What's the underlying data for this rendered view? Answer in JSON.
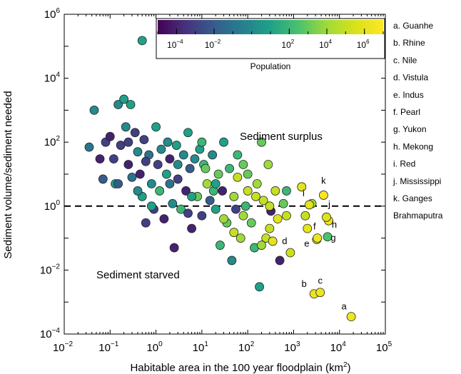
{
  "chart_data": {
    "type": "scatter",
    "xlabel": "Habitable area in the 100 year floodplain (km",
    "xlabel_sup": "2",
    "xlabel_end": ")",
    "ylabel": "Sediment volume/sediment needed",
    "xscale": "log",
    "yscale": "log",
    "xlim": [
      0.01,
      100000
    ],
    "ylim": [
      0.0001,
      1000000
    ],
    "x_ticks": [
      {
        "base": "10",
        "exp": "−2"
      },
      {
        "base": "10",
        "exp": "−1"
      },
      {
        "base": "10",
        "exp": "0"
      },
      {
        "base": "10",
        "exp": "1"
      },
      {
        "base": "10",
        "exp": "2"
      },
      {
        "base": "10",
        "exp": "3"
      },
      {
        "base": "10",
        "exp": "4"
      },
      {
        "base": "10",
        "exp": "5"
      }
    ],
    "y_ticks": [
      {
        "base": "10",
        "exp": "−4"
      },
      {
        "base": "10",
        "exp": "−2"
      },
      {
        "base": "10",
        "exp": "0"
      },
      {
        "base": "10",
        "exp": "2"
      },
      {
        "base": "10",
        "exp": "4"
      },
      {
        "base": "10",
        "exp": "6"
      }
    ],
    "threshold_line": 1,
    "region_labels": {
      "surplus": "Sediment surplus",
      "starved": "Sediment starved"
    },
    "colorbar": {
      "label": "Population",
      "colormap": "viridis",
      "log_range": [
        -5,
        7
      ],
      "ticks": [
        {
          "base": "10",
          "exp": "−4"
        },
        {
          "base": "10",
          "exp": "−2"
        },
        {
          "base": "10",
          "exp": "2"
        },
        {
          "base": "10",
          "exp": "4"
        },
        {
          "base": "10",
          "exp": "6"
        }
      ]
    },
    "river_legend": [
      "a. Guanhe",
      "b. Rhine",
      "c. Nile",
      "d. Vistula",
      "e. Indus",
      "f. Pearl",
      "g. Yukon",
      "h. Mekong",
      "i. Red",
      "j. Mississippi",
      "k. Ganges",
      "Brahmaputra"
    ],
    "labeled_points": [
      {
        "label": "a",
        "x": 18000,
        "y": 0.00035,
        "pop_log": 6.5
      },
      {
        "label": "b",
        "x": 2800,
        "y": 0.0018,
        "pop_log": 6.2
      },
      {
        "label": "c",
        "x": 3800,
        "y": 0.002,
        "pop_log": 6.3
      },
      {
        "label": "d",
        "x": 850,
        "y": 0.035,
        "pop_log": 5.2
      },
      {
        "label": "e",
        "x": 3200,
        "y": 0.09,
        "pop_log": 5.6
      },
      {
        "label": "f",
        "x": 3300,
        "y": 0.1,
        "pop_log": 6.4
      },
      {
        "label": "g",
        "x": 5500,
        "y": 0.11,
        "pop_log": 2.5
      },
      {
        "label": "h",
        "x": 5800,
        "y": 0.35,
        "pop_log": 6.5
      },
      {
        "label": "i",
        "x": 2200,
        "y": 1.1,
        "pop_log": 6.0
      },
      {
        "label": "j",
        "x": 5200,
        "y": 0.45,
        "pop_log": 5.8
      },
      {
        "label": "k",
        "x": 4500,
        "y": 2.2,
        "pop_log": 6.8
      }
    ],
    "points": [
      {
        "x": 0.5,
        "y": 150000,
        "p": 1
      },
      {
        "x": 0.035,
        "y": 70,
        "p": -1
      },
      {
        "x": 0.045,
        "y": 1000,
        "p": 0
      },
      {
        "x": 0.06,
        "y": 30,
        "p": -4
      },
      {
        "x": 0.07,
        "y": 7,
        "p": -2
      },
      {
        "x": 0.08,
        "y": 100,
        "p": -3
      },
      {
        "x": 0.1,
        "y": 150,
        "p": -4
      },
      {
        "x": 0.12,
        "y": 30,
        "p": -3
      },
      {
        "x": 0.13,
        "y": 5,
        "p": 1
      },
      {
        "x": 0.15,
        "y": 1500,
        "p": 0
      },
      {
        "x": 0.17,
        "y": 80,
        "p": -3
      },
      {
        "x": 0.2,
        "y": 2200,
        "p": 1
      },
      {
        "x": 0.22,
        "y": 300,
        "p": 0
      },
      {
        "x": 0.25,
        "y": 20,
        "p": -4
      },
      {
        "x": 0.28,
        "y": 1500,
        "p": 1
      },
      {
        "x": 0.3,
        "y": 8,
        "p": -1
      },
      {
        "x": 0.35,
        "y": 200,
        "p": -3
      },
      {
        "x": 0.4,
        "y": 50,
        "p": 0
      },
      {
        "x": 0.45,
        "y": 10,
        "p": -4
      },
      {
        "x": 0.5,
        "y": 2,
        "p": 1
      },
      {
        "x": 0.55,
        "y": 120,
        "p": -3
      },
      {
        "x": 0.6,
        "y": 0.3,
        "p": -3
      },
      {
        "x": 0.7,
        "y": 40,
        "p": -1
      },
      {
        "x": 0.8,
        "y": 5,
        "p": 0
      },
      {
        "x": 0.9,
        "y": 0.8,
        "p": -3
      },
      {
        "x": 1.0,
        "y": 300,
        "p": 1
      },
      {
        "x": 1.1,
        "y": 20,
        "p": -3
      },
      {
        "x": 1.2,
        "y": 3,
        "p": 2
      },
      {
        "x": 1.3,
        "y": 60,
        "p": 0
      },
      {
        "x": 1.5,
        "y": 0.4,
        "p": -4
      },
      {
        "x": 1.7,
        "y": 10,
        "p": 1
      },
      {
        "x": 2.0,
        "y": 30,
        "p": -4
      },
      {
        "x": 2.3,
        "y": 1.2,
        "p": 0
      },
      {
        "x": 2.5,
        "y": 0.05,
        "p": -4
      },
      {
        "x": 2.8,
        "y": 80,
        "p": 1
      },
      {
        "x": 3.0,
        "y": 7,
        "p": -3
      },
      {
        "x": 3.5,
        "y": 0.8,
        "p": 2
      },
      {
        "x": 4.0,
        "y": 40,
        "p": 0
      },
      {
        "x": 4.5,
        "y": 3,
        "p": -4
      },
      {
        "x": 5.0,
        "y": 200,
        "p": 1
      },
      {
        "x": 5.5,
        "y": 15,
        "p": -2
      },
      {
        "x": 6.0,
        "y": 0.2,
        "p": -4
      },
      {
        "x": 7.0,
        "y": 30,
        "p": 0
      },
      {
        "x": 8.0,
        "y": 2,
        "p": 3
      },
      {
        "x": 9.0,
        "y": 60,
        "p": 1
      },
      {
        "x": 10,
        "y": 0.5,
        "p": -3
      },
      {
        "x": 11,
        "y": 20,
        "p": 2
      },
      {
        "x": 13,
        "y": 5,
        "p": 4
      },
      {
        "x": 15,
        "y": 1.5,
        "p": -2
      },
      {
        "x": 17,
        "y": 40,
        "p": 0
      },
      {
        "x": 20,
        "y": 0.8,
        "p": 1
      },
      {
        "x": 23,
        "y": 10,
        "p": 3
      },
      {
        "x": 25,
        "y": 0.06,
        "p": 2
      },
      {
        "x": 28,
        "y": 3,
        "p": -4
      },
      {
        "x": 30,
        "y": 100,
        "p": 1
      },
      {
        "x": 35,
        "y": 0.3,
        "p": 3
      },
      {
        "x": 40,
        "y": 15,
        "p": 2
      },
      {
        "x": 45,
        "y": 0.02,
        "p": 0
      },
      {
        "x": 50,
        "y": 2,
        "p": 4
      },
      {
        "x": 55,
        "y": 0.8,
        "p": -3
      },
      {
        "x": 60,
        "y": 8,
        "p": 5
      },
      {
        "x": 70,
        "y": 0.1,
        "p": 4
      },
      {
        "x": 80,
        "y": 20,
        "p": 3
      },
      {
        "x": 90,
        "y": 1,
        "p": 2
      },
      {
        "x": 100,
        "y": 3,
        "p": 5
      },
      {
        "x": 120,
        "y": 0.3,
        "p": 3
      },
      {
        "x": 140,
        "y": 0.05,
        "p": 2
      },
      {
        "x": 160,
        "y": 5,
        "p": 4
      },
      {
        "x": 180,
        "y": 0.003,
        "p": 1
      },
      {
        "x": 200,
        "y": 100,
        "p": 3
      },
      {
        "x": 220,
        "y": 1.5,
        "p": 5
      },
      {
        "x": 250,
        "y": 0.1,
        "p": 5
      },
      {
        "x": 280,
        "y": 20,
        "p": 4
      },
      {
        "x": 320,
        "y": 0.7,
        "p": -4
      },
      {
        "x": 350,
        "y": 0.08,
        "p": 6
      },
      {
        "x": 400,
        "y": 3,
        "p": 5
      },
      {
        "x": 450,
        "y": 0.4,
        "p": 6
      },
      {
        "x": 500,
        "y": 0.02,
        "p": -4
      },
      {
        "x": 600,
        "y": 1.2,
        "p": 3
      },
      {
        "x": 700,
        "y": 3,
        "p": 2
      },
      {
        "x": 1500,
        "y": 4,
        "p": 6
      },
      {
        "x": 1800,
        "y": 0.5,
        "p": 5
      },
      {
        "x": 2000,
        "y": 0.2,
        "p": 6
      },
      {
        "x": 2500,
        "y": 1.2,
        "p": 4
      },
      {
        "x": 0.6,
        "y": 25,
        "p": -3
      },
      {
        "x": 1.8,
        "y": 100,
        "p": 0
      },
      {
        "x": 6,
        "y": 2,
        "p": 1
      },
      {
        "x": 12,
        "y": 15,
        "p": 3
      },
      {
        "x": 18,
        "y": 3,
        "p": 2
      },
      {
        "x": 60,
        "y": 40,
        "p": 2
      },
      {
        "x": 80,
        "y": 0.5,
        "p": 4
      },
      {
        "x": 150,
        "y": 2,
        "p": 5
      },
      {
        "x": 300,
        "y": 0.2,
        "p": 5
      },
      {
        "x": 0.25,
        "y": 100,
        "p": -3
      },
      {
        "x": 0.8,
        "y": 1,
        "p": 1
      },
      {
        "x": 3,
        "y": 20,
        "p": 0
      },
      {
        "x": 10,
        "y": 100,
        "p": 2
      },
      {
        "x": 30,
        "y": 0.4,
        "p": 4
      },
      {
        "x": 100,
        "y": 10,
        "p": 3
      },
      {
        "x": 300,
        "y": 1,
        "p": 5
      },
      {
        "x": 0.15,
        "y": 5,
        "p": -2
      },
      {
        "x": 0.4,
        "y": 3,
        "p": 0
      },
      {
        "x": 2,
        "y": 5,
        "p": -1
      },
      {
        "x": 5,
        "y": 0.6,
        "p": -3
      },
      {
        "x": 20,
        "y": 5,
        "p": 1
      },
      {
        "x": 50,
        "y": 0.15,
        "p": 5
      },
      {
        "x": 200,
        "y": 0.06,
        "p": 4
      },
      {
        "x": 700,
        "y": 0.5,
        "p": 5
      }
    ]
  }
}
